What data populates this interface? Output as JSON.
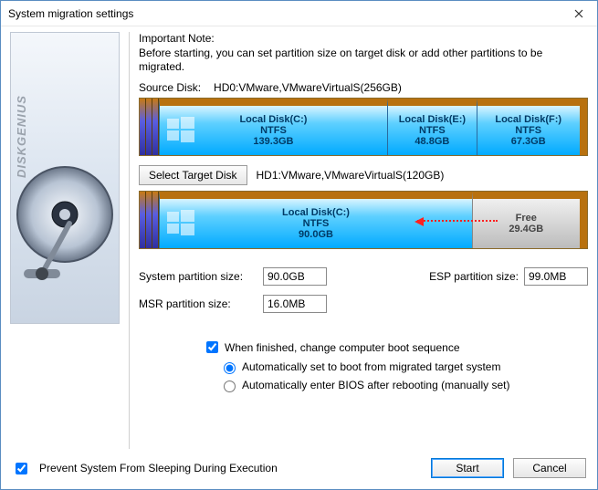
{
  "window": {
    "title": "System migration settings"
  },
  "note": {
    "heading": "Important Note:",
    "body": "Before starting, you can set partition size on target disk or add other partitions to be migrated."
  },
  "source": {
    "label": "Source Disk:",
    "value": "HD0:VMware,VMwareVirtualS(256GB)",
    "partitions": [
      {
        "name": "Local Disk(C:)",
        "fs": "NTFS",
        "size": "139.3GB",
        "width_pct": 51,
        "has_flag": true
      },
      {
        "name": "Local Disk(E:)",
        "fs": "NTFS",
        "size": "48.8GB",
        "width_pct": 20,
        "has_flag": false
      },
      {
        "name": "Local Disk(F:)",
        "fs": "NTFS",
        "size": "67.3GB",
        "width_pct": 23,
        "has_flag": false
      }
    ]
  },
  "target": {
    "button": "Select Target Disk",
    "value": "HD1:VMware,VMwareVirtualS(120GB)",
    "partitions": [
      {
        "name": "Local Disk(C:)",
        "fs": "NTFS",
        "size": "90.0GB",
        "width_pct": 70,
        "has_flag": true,
        "type": "used"
      },
      {
        "name": "Free",
        "fs": "",
        "size": "29.4GB",
        "width_pct": 24,
        "has_flag": false,
        "type": "free"
      }
    ]
  },
  "fields": {
    "sys_label": "System partition size:",
    "sys_value": "90.0GB",
    "esp_label": "ESP partition size:",
    "esp_value": "99.0MB",
    "msr_label": "MSR partition size:",
    "msr_value": "16.0MB"
  },
  "options": {
    "boot_seq": "When finished, change computer boot sequence",
    "boot_seq_checked": true,
    "auto_migrated": "Automatically set to boot from migrated target system",
    "auto_bios": "Automatically enter BIOS after rebooting (manually set)",
    "radio_selected": "migrated"
  },
  "footer": {
    "prevent_sleep": "Prevent System From Sleeping During Execution",
    "prevent_sleep_checked": true,
    "start": "Start",
    "cancel": "Cancel"
  },
  "sidebar_brand": "DISKGENIUS",
  "colors": {
    "partition_gradient_top": "#d9f4ff",
    "partition_gradient_bottom": "#00aaff",
    "bar_header": "#b8710f",
    "free_bg": "#d0d0d0",
    "arrow": "#ff2020"
  }
}
